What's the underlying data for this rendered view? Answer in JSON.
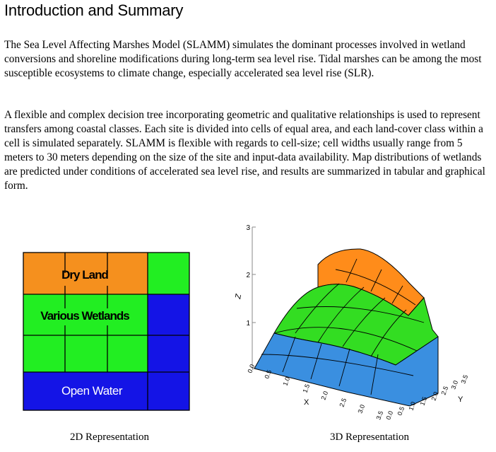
{
  "section": {
    "title": "Introduction and Summary",
    "paragraph_1": "The Sea Level Affecting Marshes Model (SLAMM) simulates the dominant processes involved in wetland conversions and shoreline modifications during long-term sea level rise.  Tidal marshes can be among the most susceptible ecosystems to climate change, especially accelerated sea level rise (SLR).",
    "paragraph_2": "A flexible and complex decision tree incorporating geometric and qualitative relationships is used to represent transfers among coastal classes.  Each site is divided into cells of equal area, and each land-cover class within a cell is simulated separately.  SLAMM is flexible with regards to cell-size; cell widths usually range from 5 meters to 30 meters depending on the size of the site and input-data availability.  Map distributions of wetlands are predicted under conditions of accelerated sea level rise, and results are summarized in tabular and graphical form."
  },
  "figure_2d": {
    "caption": "2D Representation",
    "labels": {
      "dry_land": "Dry Land",
      "wetlands": "Various Wetlands",
      "open_water": "Open Water"
    },
    "colors": {
      "dry_land": "#f5901e",
      "wetlands": "#22ee22",
      "open_water": "#1414e6"
    }
  },
  "figure_3d": {
    "caption": "3D Representation",
    "z_axis_label": "Z",
    "x_axis_label": "X",
    "y_axis_label": "Y",
    "z_ticks": [
      "3",
      "2",
      "1",
      "0.0"
    ],
    "x_ticks": [
      "0.5",
      "1.0",
      "1.5",
      "2.0",
      "2.5",
      "3.0",
      "3.5"
    ],
    "y_ticks": [
      "0.0",
      "0.5",
      "1.0",
      "1.5",
      "2.0",
      "2.5",
      "3.0",
      "3.5"
    ],
    "colors": {
      "top": "#ff8c1a",
      "middle": "#33dd22",
      "bottom": "#3a8fe0",
      "edge": "#e1c9f0"
    }
  }
}
